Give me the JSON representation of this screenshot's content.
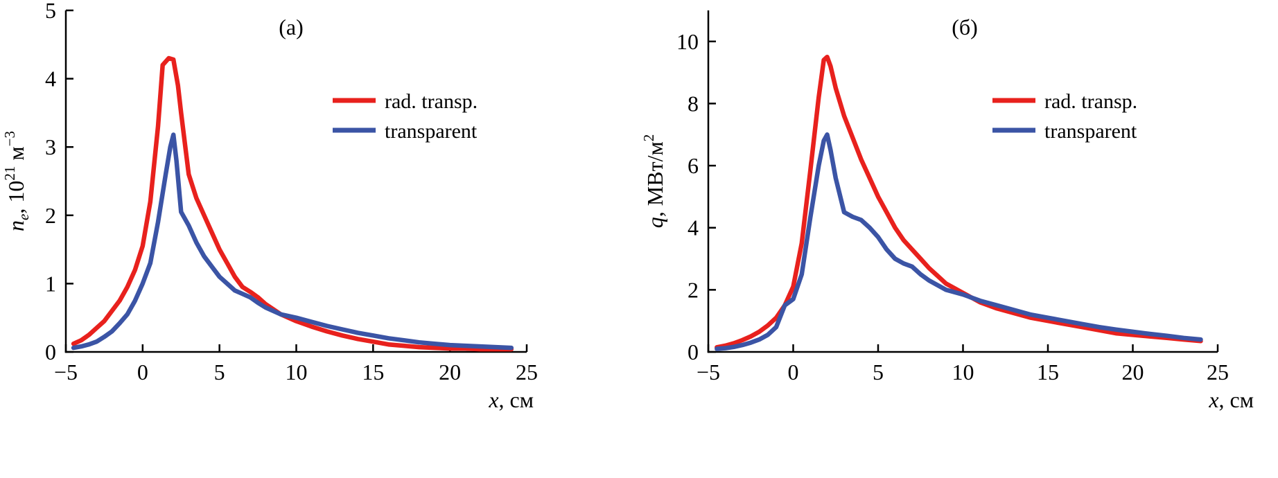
{
  "figure": {
    "background": "#ffffff",
    "axis_color": "#000000"
  },
  "chart_data": [
    {
      "type": "line",
      "panel_label": "(a)",
      "xlabel_parts": [
        {
          "text": "x",
          "italic": true
        },
        {
          "text": ", см"
        }
      ],
      "ylabel_parts": [
        {
          "text": "n",
          "italic": true
        },
        {
          "text": "e",
          "italic": true,
          "sub": true
        },
        {
          "text": ", 10"
        },
        {
          "text": "21",
          "sup": true
        },
        {
          "text": " м"
        },
        {
          "text": "−3",
          "sup": true
        }
      ],
      "xlim": [
        -5,
        25
      ],
      "ylim": [
        0,
        5
      ],
      "xticks": [
        {
          "v": -5,
          "label": "−5"
        },
        {
          "v": 0,
          "label": "0"
        },
        {
          "v": 5,
          "label": "5"
        },
        {
          "v": 10,
          "label": "10"
        },
        {
          "v": 15,
          "label": "15"
        },
        {
          "v": 20,
          "label": "20"
        },
        {
          "v": 25,
          "label": "25"
        }
      ],
      "yticks": [
        {
          "v": 0,
          "label": "0"
        },
        {
          "v": 1,
          "label": "1"
        },
        {
          "v": 2,
          "label": "2"
        },
        {
          "v": 3,
          "label": "3"
        },
        {
          "v": 4,
          "label": "4"
        },
        {
          "v": 5,
          "label": "5"
        }
      ],
      "grid": false,
      "legend_position": "upper-right",
      "series": [
        {
          "name": "rad. transp.",
          "color": "#e8211d",
          "points": [
            [
              -4.5,
              0.12
            ],
            [
              -4,
              0.17
            ],
            [
              -3.5,
              0.25
            ],
            [
              -3,
              0.35
            ],
            [
              -2.5,
              0.45
            ],
            [
              -2,
              0.6
            ],
            [
              -1.5,
              0.75
            ],
            [
              -1,
              0.95
            ],
            [
              -0.5,
              1.2
            ],
            [
              0,
              1.55
            ],
            [
              0.5,
              2.2
            ],
            [
              1,
              3.3
            ],
            [
              1.3,
              4.2
            ],
            [
              1.7,
              4.3
            ],
            [
              2,
              4.28
            ],
            [
              2.3,
              3.9
            ],
            [
              2.5,
              3.5
            ],
            [
              3,
              2.6
            ],
            [
              3.5,
              2.25
            ],
            [
              4,
              2.0
            ],
            [
              4.5,
              1.75
            ],
            [
              5,
              1.5
            ],
            [
              5.5,
              1.3
            ],
            [
              6,
              1.1
            ],
            [
              6.5,
              0.95
            ],
            [
              7,
              0.88
            ],
            [
              7.5,
              0.8
            ],
            [
              8,
              0.7
            ],
            [
              9,
              0.55
            ],
            [
              10,
              0.45
            ],
            [
              11,
              0.37
            ],
            [
              12,
              0.3
            ],
            [
              13,
              0.24
            ],
            [
              14,
              0.19
            ],
            [
              15,
              0.15
            ],
            [
              16,
              0.11
            ],
            [
              17,
              0.09
            ],
            [
              18,
              0.07
            ],
            [
              19,
              0.06
            ],
            [
              20,
              0.05
            ],
            [
              21,
              0.05
            ],
            [
              22,
              0.04
            ],
            [
              23,
              0.04
            ],
            [
              24,
              0.04
            ]
          ]
        },
        {
          "name": "transparent",
          "color": "#3b54a5",
          "points": [
            [
              -4.5,
              0.06
            ],
            [
              -4,
              0.08
            ],
            [
              -3.5,
              0.11
            ],
            [
              -3,
              0.15
            ],
            [
              -2.5,
              0.22
            ],
            [
              -2,
              0.3
            ],
            [
              -1.5,
              0.42
            ],
            [
              -1,
              0.55
            ],
            [
              -0.5,
              0.75
            ],
            [
              0,
              1.0
            ],
            [
              0.5,
              1.3
            ],
            [
              1,
              1.9
            ],
            [
              1.5,
              2.6
            ],
            [
              1.8,
              3.0
            ],
            [
              2,
              3.18
            ],
            [
              2.2,
              2.8
            ],
            [
              2.5,
              2.05
            ],
            [
              3,
              1.85
            ],
            [
              3.5,
              1.6
            ],
            [
              4,
              1.4
            ],
            [
              4.5,
              1.25
            ],
            [
              5,
              1.1
            ],
            [
              5.5,
              1.0
            ],
            [
              6,
              0.9
            ],
            [
              6.5,
              0.85
            ],
            [
              7,
              0.8
            ],
            [
              7.5,
              0.72
            ],
            [
              8,
              0.65
            ],
            [
              9,
              0.55
            ],
            [
              10,
              0.5
            ],
            [
              11,
              0.44
            ],
            [
              12,
              0.38
            ],
            [
              13,
              0.33
            ],
            [
              14,
              0.28
            ],
            [
              15,
              0.24
            ],
            [
              16,
              0.2
            ],
            [
              17,
              0.17
            ],
            [
              18,
              0.14
            ],
            [
              19,
              0.12
            ],
            [
              20,
              0.1
            ],
            [
              21,
              0.09
            ],
            [
              22,
              0.08
            ],
            [
              23,
              0.07
            ],
            [
              24,
              0.06
            ]
          ]
        }
      ]
    },
    {
      "type": "line",
      "panel_label": "(б)",
      "xlabel_parts": [
        {
          "text": "x",
          "italic": true
        },
        {
          "text": ", см"
        }
      ],
      "ylabel_parts": [
        {
          "text": "q",
          "italic": true
        },
        {
          "text": ", МВт/м"
        },
        {
          "text": "2",
          "sup": true
        }
      ],
      "xlim": [
        -5,
        25
      ],
      "ylim": [
        0,
        11
      ],
      "xticks": [
        {
          "v": -5,
          "label": "−5"
        },
        {
          "v": 0,
          "label": "0"
        },
        {
          "v": 5,
          "label": "5"
        },
        {
          "v": 10,
          "label": "10"
        },
        {
          "v": 15,
          "label": "15"
        },
        {
          "v": 20,
          "label": "20"
        },
        {
          "v": 25,
          "label": "25"
        }
      ],
      "yticks": [
        {
          "v": 0,
          "label": "0"
        },
        {
          "v": 2,
          "label": "2"
        },
        {
          "v": 4,
          "label": "4"
        },
        {
          "v": 6,
          "label": "6"
        },
        {
          "v": 8,
          "label": "8"
        },
        {
          "v": 10,
          "label": "10"
        }
      ],
      "grid": false,
      "legend_position": "upper-right",
      "series": [
        {
          "name": "rad. transp.",
          "color": "#e8211d",
          "points": [
            [
              -4.5,
              0.15
            ],
            [
              -4,
              0.2
            ],
            [
              -3.5,
              0.28
            ],
            [
              -3,
              0.38
            ],
            [
              -2.5,
              0.5
            ],
            [
              -2,
              0.65
            ],
            [
              -1.5,
              0.85
            ],
            [
              -1,
              1.1
            ],
            [
              -0.5,
              1.5
            ],
            [
              0,
              2.1
            ],
            [
              0.5,
              3.5
            ],
            [
              1,
              5.8
            ],
            [
              1.5,
              8.2
            ],
            [
              1.8,
              9.4
            ],
            [
              2,
              9.5
            ],
            [
              2.2,
              9.2
            ],
            [
              2.5,
              8.5
            ],
            [
              3,
              7.6
            ],
            [
              3.5,
              6.9
            ],
            [
              4,
              6.2
            ],
            [
              4.5,
              5.6
            ],
            [
              5,
              5.0
            ],
            [
              5.5,
              4.5
            ],
            [
              6,
              4.0
            ],
            [
              6.5,
              3.6
            ],
            [
              7,
              3.3
            ],
            [
              7.5,
              3.0
            ],
            [
              8,
              2.7
            ],
            [
              8.5,
              2.45
            ],
            [
              9,
              2.2
            ],
            [
              9.5,
              2.05
            ],
            [
              10,
              1.9
            ],
            [
              11,
              1.6
            ],
            [
              12,
              1.4
            ],
            [
              13,
              1.25
            ],
            [
              14,
              1.1
            ],
            [
              15,
              1.0
            ],
            [
              16,
              0.9
            ],
            [
              17,
              0.8
            ],
            [
              18,
              0.7
            ],
            [
              19,
              0.6
            ],
            [
              20,
              0.55
            ],
            [
              21,
              0.5
            ],
            [
              22,
              0.45
            ],
            [
              23,
              0.4
            ],
            [
              24,
              0.35
            ]
          ]
        },
        {
          "name": "transparent",
          "color": "#3b54a5",
          "points": [
            [
              -4.5,
              0.1
            ],
            [
              -4,
              0.12
            ],
            [
              -3.5,
              0.16
            ],
            [
              -3,
              0.22
            ],
            [
              -2.5,
              0.3
            ],
            [
              -2,
              0.4
            ],
            [
              -1.5,
              0.55
            ],
            [
              -1,
              0.8
            ],
            [
              -0.5,
              1.5
            ],
            [
              0,
              1.7
            ],
            [
              0.5,
              2.5
            ],
            [
              1,
              4.3
            ],
            [
              1.5,
              6.0
            ],
            [
              1.8,
              6.8
            ],
            [
              2,
              7.0
            ],
            [
              2.2,
              6.5
            ],
            [
              2.5,
              5.6
            ],
            [
              3,
              4.5
            ],
            [
              3.5,
              4.35
            ],
            [
              4,
              4.25
            ],
            [
              4.5,
              4.0
            ],
            [
              5,
              3.7
            ],
            [
              5.5,
              3.3
            ],
            [
              6,
              3.0
            ],
            [
              6.5,
              2.85
            ],
            [
              7,
              2.75
            ],
            [
              7.5,
              2.5
            ],
            [
              8,
              2.3
            ],
            [
              9,
              2.0
            ],
            [
              10,
              1.85
            ],
            [
              11,
              1.65
            ],
            [
              12,
              1.5
            ],
            [
              13,
              1.35
            ],
            [
              14,
              1.2
            ],
            [
              15,
              1.1
            ],
            [
              16,
              1.0
            ],
            [
              17,
              0.9
            ],
            [
              18,
              0.8
            ],
            [
              19,
              0.72
            ],
            [
              20,
              0.65
            ],
            [
              21,
              0.58
            ],
            [
              22,
              0.52
            ],
            [
              23,
              0.45
            ],
            [
              24,
              0.4
            ]
          ]
        }
      ]
    }
  ]
}
